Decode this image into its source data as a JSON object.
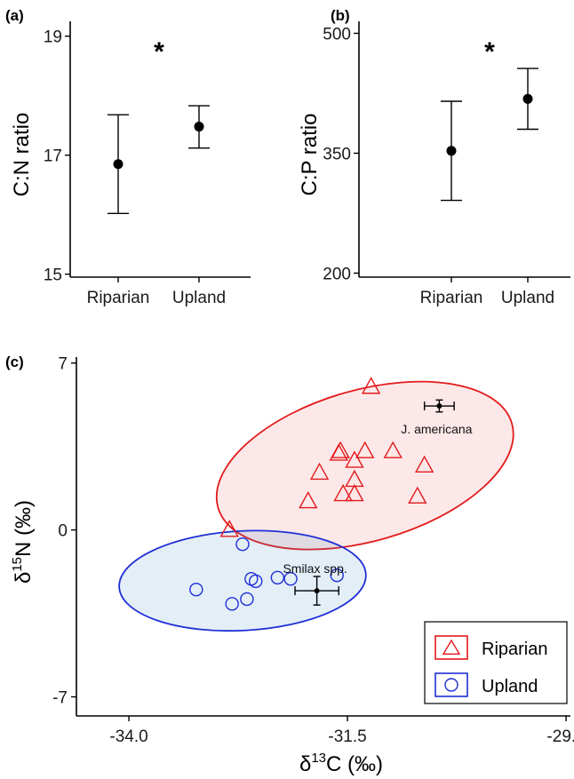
{
  "chart_data": [
    {
      "panel": "(a)",
      "type": "scatter",
      "categories": [
        "Riparian",
        "Upland"
      ],
      "series": [
        {
          "mean": [
            16.85,
            17.48
          ],
          "lower": [
            16.02,
            17.12
          ],
          "upper": [
            17.68,
            17.83
          ]
        }
      ],
      "ylabel": "C:N ratio",
      "yticks": [
        15,
        17,
        19
      ],
      "ylim": [
        14.95,
        19.25
      ],
      "annotation": "*"
    },
    {
      "panel": "(b)",
      "type": "scatter",
      "categories": [
        "Riparian",
        "Upland"
      ],
      "series": [
        {
          "mean": [
            353,
            418
          ],
          "lower": [
            291,
            380
          ],
          "upper": [
            415,
            456
          ]
        }
      ],
      "ylabel": "C:P ratio",
      "yticks": [
        200,
        350,
        500
      ],
      "ylim": [
        195,
        515
      ],
      "annotation": "*"
    },
    {
      "panel": "(c)",
      "type": "scatter",
      "xlabel": "δ13C (‰)",
      "ylabel": "δ15N (‰)",
      "xticks": [
        "-34.0",
        "-31.5",
        "-29.0"
      ],
      "yticks": [
        "-7",
        "0",
        "7"
      ],
      "xlim": [
        -34.6,
        -28.95
      ],
      "ylim": [
        -7.8,
        7.25
      ],
      "legend_position": "bottom-right",
      "series": [
        {
          "name": "Riparian",
          "marker": "triangle",
          "color": "#e31a1c",
          "points": [
            [
              -31.23,
              6.0
            ],
            [
              -31.3,
              3.3
            ],
            [
              -31.42,
              2.9
            ],
            [
              -31.42,
              2.1
            ],
            [
              -31.58,
              3.3
            ],
            [
              -31.6,
              3.2
            ],
            [
              -31.82,
              2.4
            ],
            [
              -31.95,
              1.2
            ],
            [
              -31.55,
              1.5
            ],
            [
              -31.42,
              1.5
            ],
            [
              -30.98,
              3.3
            ],
            [
              -30.62,
              2.7
            ],
            [
              -30.7,
              1.4
            ],
            [
              -32.85,
              0.0
            ]
          ],
          "ellipse": {
            "cx": -31.3,
            "cy": 2.7,
            "rx": 1.9,
            "ry": 3.1,
            "angle": 0.7
          }
        },
        {
          "name": "Upland",
          "marker": "circle",
          "color": "#1f2fd6",
          "points": [
            [
              -32.7,
              -0.6
            ],
            [
              -33.23,
              -2.5
            ],
            [
              -32.6,
              -2.05
            ],
            [
              -32.55,
              -2.15
            ],
            [
              -32.3,
              -2.0
            ],
            [
              -32.15,
              -2.05
            ],
            [
              -32.65,
              -2.9
            ],
            [
              -32.82,
              -3.1
            ],
            [
              -31.62,
              -1.9
            ]
          ],
          "ellipse": {
            "cx": -32.7,
            "cy": -2.13,
            "rx": 1.05,
            "ry": 4.2,
            "angle": 0.2
          }
        }
      ],
      "sources": [
        {
          "label": "J. americana",
          "x": -30.45,
          "y": 5.2,
          "xerr": 0.17,
          "yerr": 0.25
        },
        {
          "label": "Smilax spp.",
          "x": -31.85,
          "y": -2.55,
          "xerr": 0.25,
          "yerr": 0.6
        }
      ]
    }
  ]
}
